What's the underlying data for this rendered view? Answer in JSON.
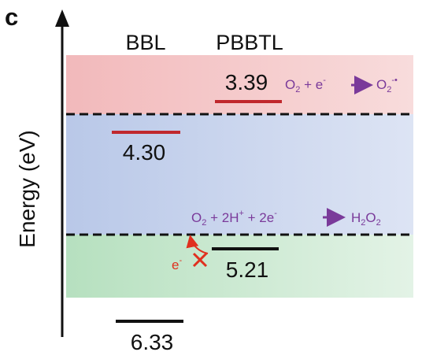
{
  "panel_label": "c",
  "axis_label": "Energy (eV)",
  "materials": [
    "BBL",
    "PBBTL"
  ],
  "levels": {
    "bbl_lumo": "4.30",
    "bbl_homo": "6.33",
    "pbbtl_lumo": "3.39",
    "pbbtl_homo": "5.21"
  },
  "reactions": {
    "superoxide": {
      "lhs": "O",
      "lhs_sub": "2",
      "plus": " + e",
      "sup": "-",
      "rhs": "O",
      "rhs_sub": "2",
      "rhs_sup": "-•"
    },
    "peroxide": {
      "lhs": "O",
      "lhs_sub": "2",
      "mid": " + 2H",
      "sup1": "+",
      "mid2": " + 2e",
      "sup2": "-",
      "rhs": "H",
      "rhs_sub1": "2",
      "rhs2": "O",
      "rhs_sub2": "2"
    }
  },
  "electron_label": {
    "base": "e",
    "sup": "-"
  },
  "colors": {
    "top_band": "#f3c4c4",
    "mid_band": "#c9d3ec",
    "bottom_band": "#c7e6cd",
    "lumo_line": "#c0282d",
    "homo_line": "#111111",
    "reaction_text": "#7a3a9a",
    "electron": "#e0301e"
  }
}
